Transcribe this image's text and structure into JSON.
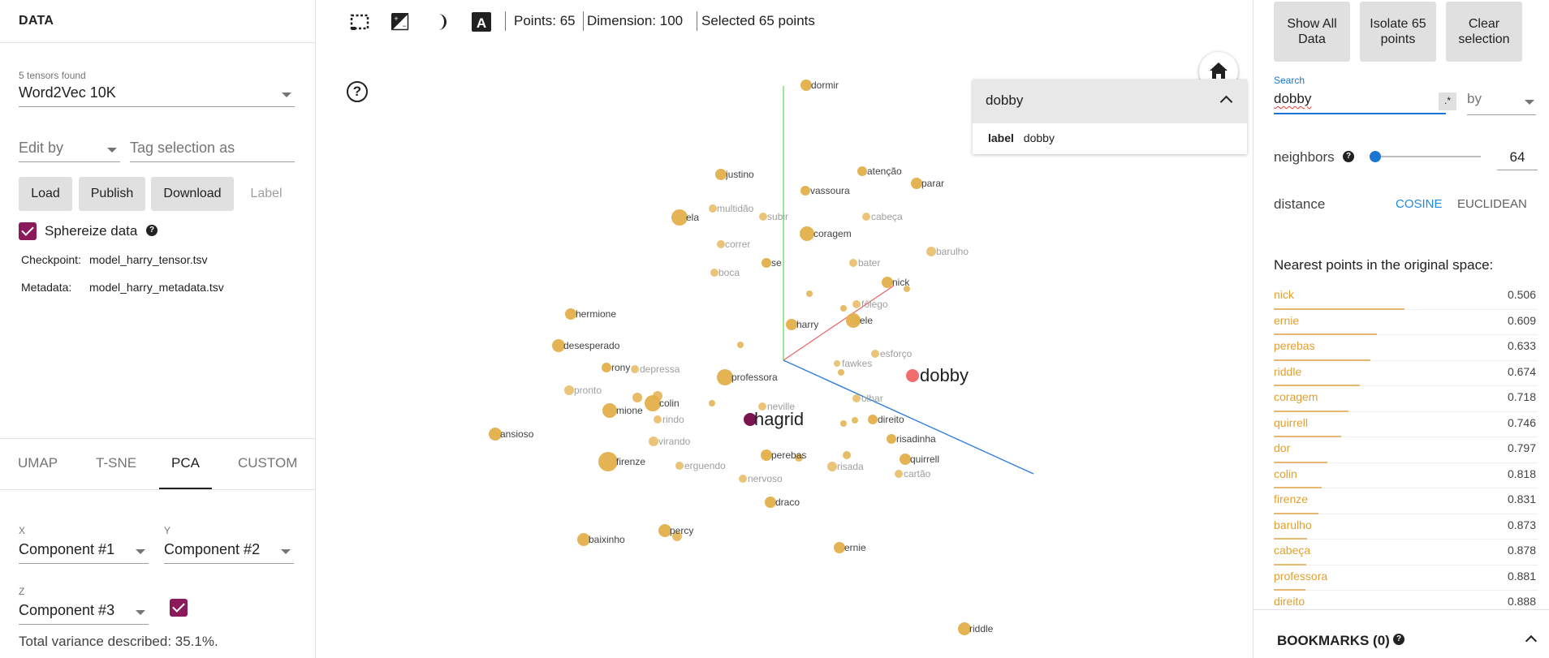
{
  "left_panel": {
    "title": "DATA",
    "tensors_found": "5 tensors found",
    "tensor_selected": "Word2Vec 10K",
    "edit_by_placeholder": "Edit by",
    "tag_selection_placeholder": "Tag selection as",
    "buttons": {
      "load": "Load",
      "publish": "Publish",
      "download": "Download",
      "label": "Label"
    },
    "sphereize_label": "Sphereize data",
    "sphereize_checked": true,
    "checkpoint_label": "Checkpoint:",
    "checkpoint_value": "model_harry_tensor.tsv",
    "metadata_label": "Metadata:",
    "metadata_value": "model_harry_metadata.tsv",
    "tabs": [
      "UMAP",
      "T-SNE",
      "PCA",
      "CUSTOM"
    ],
    "active_tab": "PCA",
    "pca": {
      "x_label": "X",
      "x_value": "Component #1",
      "y_label": "Y",
      "y_value": "Component #2",
      "z_label": "Z",
      "z_value": "Component #3",
      "z_checked": true,
      "variance": "Total variance described: 35.1%."
    }
  },
  "toolbar": {
    "icons": [
      "selection-box-icon",
      "night-mode-icon",
      "moon-icon",
      "label-a-icon"
    ],
    "points": "Points: 65",
    "dimension": "Dimension: 100",
    "selected": "Selected 65 points"
  },
  "search_card": {
    "query": "dobby",
    "row_key": "label",
    "row_value": "dobby"
  },
  "projector": {
    "highlight": {
      "dobby": "dobby",
      "hagrid": "hagrid"
    },
    "colors": {
      "point": "#e3b04b",
      "selected": "#f26d6d",
      "hagrid": "#7a1550",
      "dim": "#bdbdbd"
    },
    "points": [
      {
        "label": "dormir",
        "c": "a"
      },
      {
        "label": "justino",
        "c": "a"
      },
      {
        "label": "vassoura",
        "c": "a"
      },
      {
        "label": "atenção",
        "c": "a"
      },
      {
        "label": "parar",
        "c": "a"
      },
      {
        "label": "ela",
        "c": "a"
      },
      {
        "label": "multidão",
        "c": "d"
      },
      {
        "label": "subir",
        "c": "d"
      },
      {
        "label": "cabeça",
        "c": "d"
      },
      {
        "label": "coragem",
        "c": "a"
      },
      {
        "label": "correr",
        "c": "d"
      },
      {
        "label": "se",
        "c": "a"
      },
      {
        "label": "bater",
        "c": "d"
      },
      {
        "label": "barulho",
        "c": "d"
      },
      {
        "label": "boca",
        "c": "d"
      },
      {
        "label": "nick",
        "c": "a"
      },
      {
        "label": "fôlego",
        "c": "d"
      },
      {
        "label": "hermione",
        "c": "a"
      },
      {
        "label": "harry",
        "c": "a"
      },
      {
        "label": "ele",
        "c": "a"
      },
      {
        "label": "desesperado",
        "c": "a"
      },
      {
        "label": "esforço",
        "c": "d"
      },
      {
        "label": "rony",
        "c": "a"
      },
      {
        "label": "depressa",
        "c": "d"
      },
      {
        "label": "professora",
        "c": "a"
      },
      {
        "label": "fawkes",
        "c": "d"
      },
      {
        "label": "pronto",
        "c": "d"
      },
      {
        "label": "olhar",
        "c": "d"
      },
      {
        "label": "colin",
        "c": "a"
      },
      {
        "label": "mione",
        "c": "a"
      },
      {
        "label": "neville",
        "c": "d"
      },
      {
        "label": "rindo",
        "c": "d"
      },
      {
        "label": "direito",
        "c": "a"
      },
      {
        "label": "ansioso",
        "c": "a"
      },
      {
        "label": "risadinha",
        "c": "a"
      },
      {
        "label": "virando",
        "c": "d"
      },
      {
        "label": "firenze",
        "c": "a"
      },
      {
        "label": "perebas",
        "c": "a"
      },
      {
        "label": "quirrell",
        "c": "a"
      },
      {
        "label": "erguendo",
        "c": "d"
      },
      {
        "label": "risada",
        "c": "d"
      },
      {
        "label": "cartão",
        "c": "d"
      },
      {
        "label": "nervoso",
        "c": "d"
      },
      {
        "label": "draco",
        "c": "a"
      },
      {
        "label": "percy",
        "c": "a"
      },
      {
        "label": "baixinho",
        "c": "a"
      },
      {
        "label": "ernie",
        "c": "a"
      },
      {
        "label": "riddle",
        "c": "a"
      }
    ]
  },
  "right_panel": {
    "show_all": "Show All Data",
    "isolate": "Isolate 65 points",
    "clear": "Clear selection",
    "search_label": "Search",
    "search_value": "dobby",
    "regex": ".*",
    "by_placeholder": "by",
    "neighbors_label": "neighbors",
    "neighbors_value": "64",
    "neighbors_fraction": 0.0,
    "distance_label": "distance",
    "distance_options": [
      "COSINE",
      "EUCLIDEAN"
    ],
    "distance_selected": "COSINE",
    "nn_title": "Nearest points in the original space:",
    "neighbors": [
      {
        "label": "nick",
        "value": "0.506"
      },
      {
        "label": "ernie",
        "value": "0.609"
      },
      {
        "label": "perebas",
        "value": "0.633"
      },
      {
        "label": "riddle",
        "value": "0.674"
      },
      {
        "label": "coragem",
        "value": "0.718"
      },
      {
        "label": "quirrell",
        "value": "0.746"
      },
      {
        "label": "dor",
        "value": "0.797"
      },
      {
        "label": "colin",
        "value": "0.818"
      },
      {
        "label": "firenze",
        "value": "0.831"
      },
      {
        "label": "barulho",
        "value": "0.873"
      },
      {
        "label": "cabeça",
        "value": "0.878"
      },
      {
        "label": "professora",
        "value": "0.881"
      },
      {
        "label": "direito",
        "value": "0.888"
      }
    ],
    "bookmarks": "BOOKMARKS (0)"
  }
}
